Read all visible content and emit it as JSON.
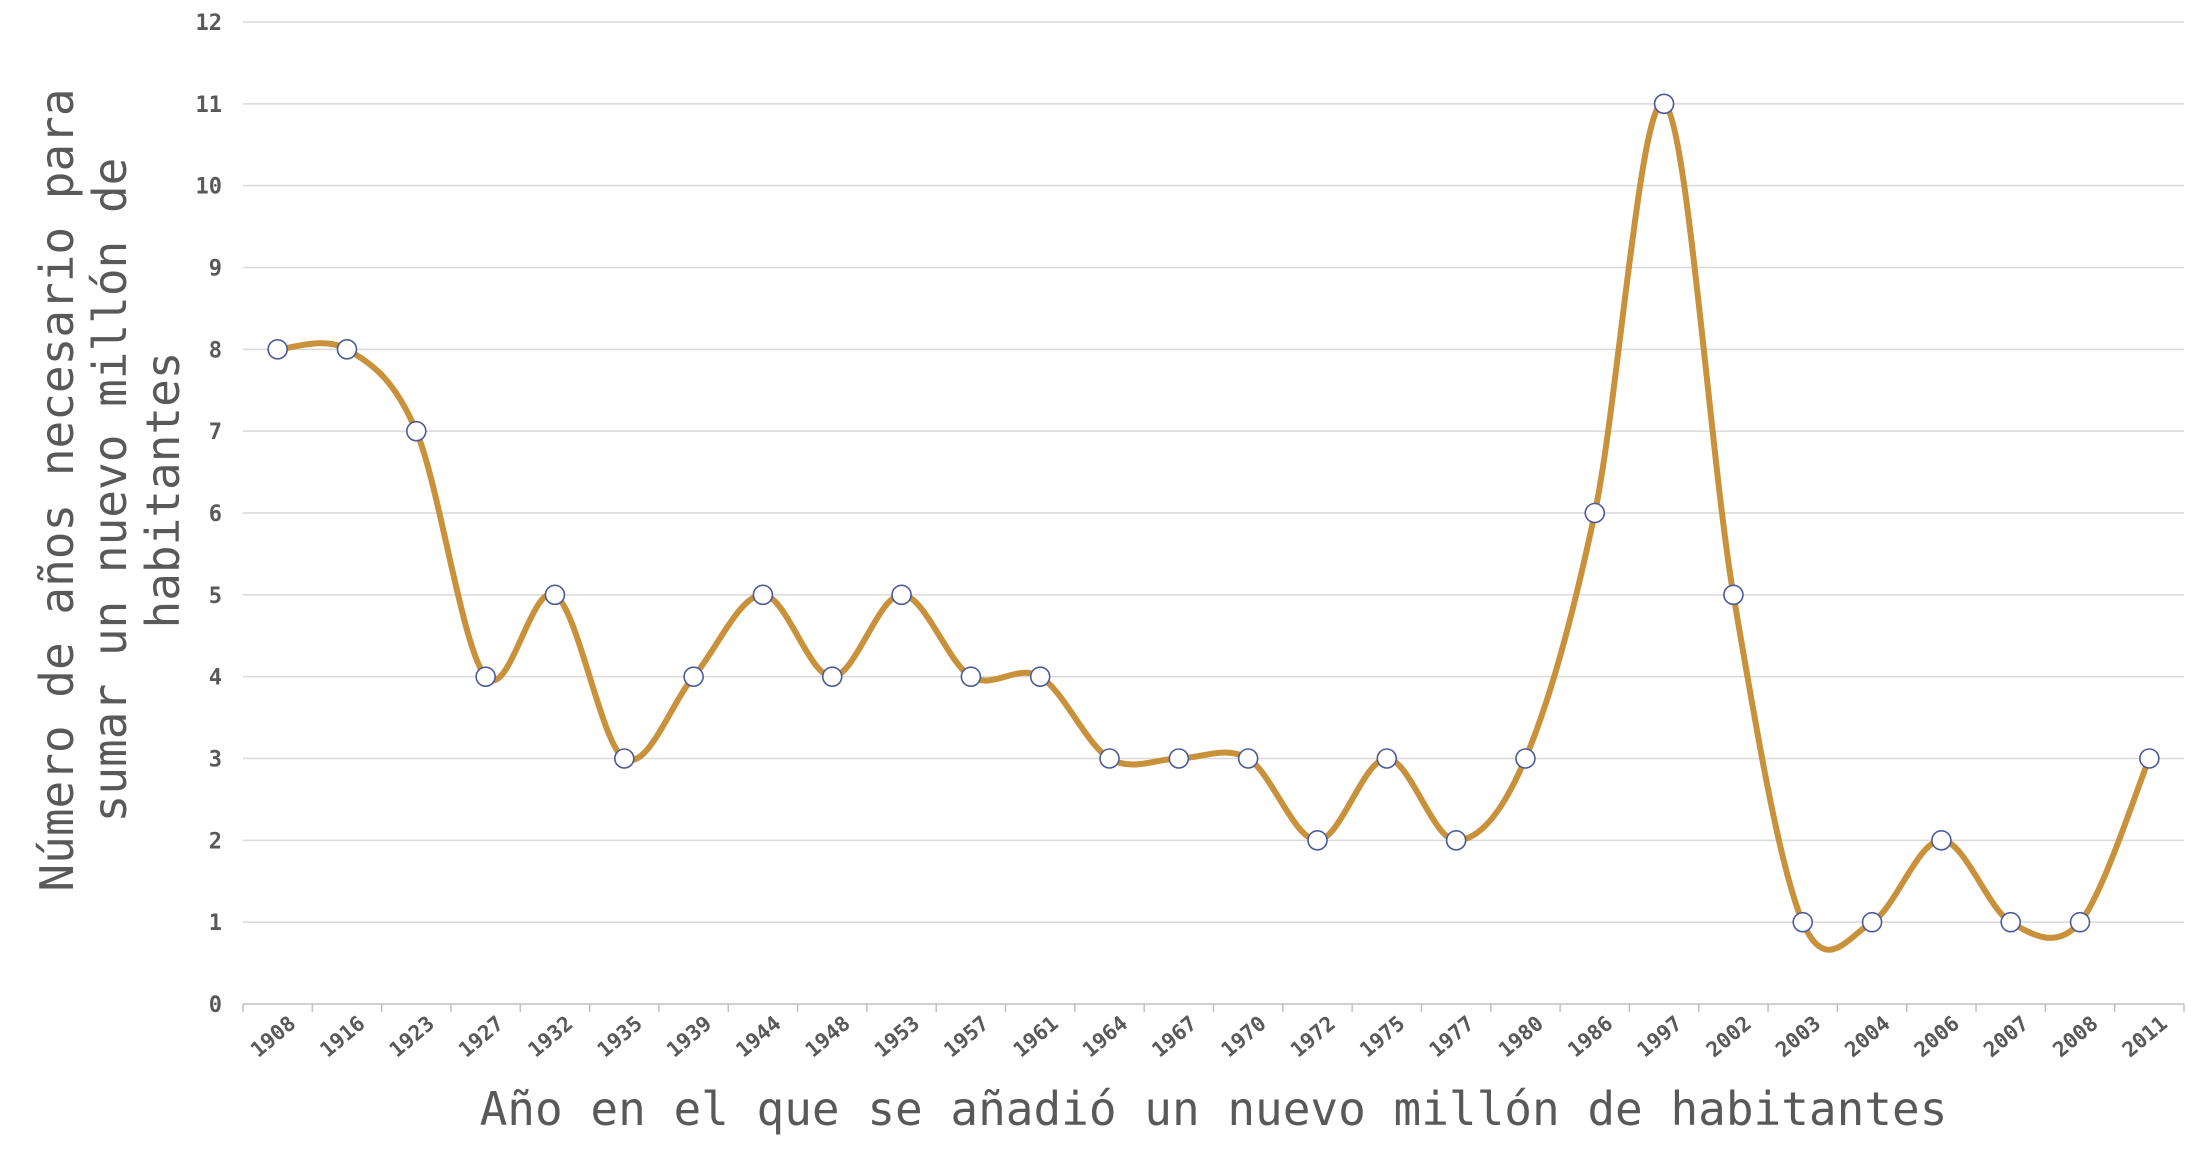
{
  "chart_data": {
    "type": "line",
    "title": "",
    "xlabel": "Año en el que se añadió un nuevo millón de habitantes",
    "ylabel_lines": [
      "Número de años necesario para",
      "sumar un nuevo millón de",
      "habitantes"
    ],
    "categories": [
      "1908",
      "1916",
      "1923",
      "1927",
      "1932",
      "1935",
      "1939",
      "1944",
      "1948",
      "1953",
      "1957",
      "1961",
      "1964",
      "1967",
      "1970",
      "1972",
      "1975",
      "1977",
      "1980",
      "1986",
      "1997",
      "2002",
      "2003",
      "2004",
      "2006",
      "2007",
      "2008",
      "2011"
    ],
    "series": [
      {
        "values": [
          8,
          8,
          7,
          4,
          5,
          3,
          4,
          5,
          4,
          5,
          4,
          4,
          3,
          3,
          3,
          2,
          3,
          2,
          3,
          6,
          11,
          5,
          1,
          1,
          2,
          1,
          1,
          3
        ]
      }
    ],
    "ylim": [
      0,
      12
    ],
    "yticks": [
      0,
      1,
      2,
      3,
      4,
      5,
      6,
      7,
      8,
      9,
      10,
      11,
      12
    ],
    "grid": true,
    "smooth": true,
    "line_color": "#c9913a",
    "marker_border_color": "#4a5a99",
    "legend": "none"
  }
}
